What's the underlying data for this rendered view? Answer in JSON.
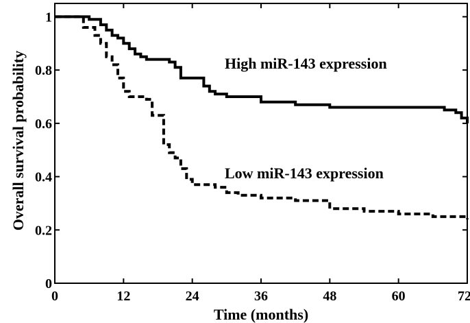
{
  "chart_data": {
    "type": "line",
    "title": "",
    "xlabel": "Time (months)",
    "ylabel": "Overall survival probability",
    "xlim": [
      0,
      72
    ],
    "ylim": [
      0,
      1.05
    ],
    "x_ticks": [
      0,
      12,
      24,
      36,
      48,
      60,
      72
    ],
    "y_ticks": [
      0,
      0.2,
      0.4,
      0.6,
      0.8,
      1
    ],
    "x_tick_labels": [
      "0",
      "12",
      "24",
      "36",
      "48",
      "60",
      "72"
    ],
    "y_tick_labels": [
      "0",
      "0.2",
      "0.4",
      "0.6",
      "0.8",
      "1"
    ],
    "grid": false,
    "annotations": [
      "High miR-143 expression",
      "Low miR-143 expression"
    ],
    "series": [
      {
        "label": "High miR-143 expression",
        "style": "solid",
        "x": [
          0,
          5,
          6,
          8,
          9,
          10,
          11,
          12,
          13,
          14,
          15,
          16,
          18,
          20,
          21,
          22,
          25,
          26,
          27,
          28,
          30,
          33,
          36,
          42,
          48,
          60,
          68,
          70,
          71,
          72
        ],
        "y": [
          1.0,
          1.0,
          0.99,
          0.97,
          0.95,
          0.93,
          0.92,
          0.9,
          0.88,
          0.86,
          0.85,
          0.84,
          0.84,
          0.83,
          0.81,
          0.77,
          0.77,
          0.74,
          0.72,
          0.71,
          0.7,
          0.7,
          0.68,
          0.67,
          0.66,
          0.66,
          0.65,
          0.64,
          0.62,
          0.6
        ]
      },
      {
        "label": "Low miR-143 expression",
        "style": "dashed",
        "x": [
          0,
          4,
          5,
          7,
          8,
          9,
          10,
          11,
          12,
          13,
          16,
          17,
          19,
          20,
          21,
          22,
          23,
          24,
          28,
          30,
          32,
          36,
          42,
          48,
          54,
          60,
          66,
          72
        ],
        "y": [
          1.0,
          1.0,
          0.96,
          0.93,
          0.9,
          0.85,
          0.82,
          0.77,
          0.72,
          0.7,
          0.69,
          0.63,
          0.52,
          0.49,
          0.47,
          0.43,
          0.39,
          0.37,
          0.36,
          0.34,
          0.33,
          0.32,
          0.31,
          0.28,
          0.27,
          0.26,
          0.25,
          0.24
        ]
      }
    ]
  }
}
